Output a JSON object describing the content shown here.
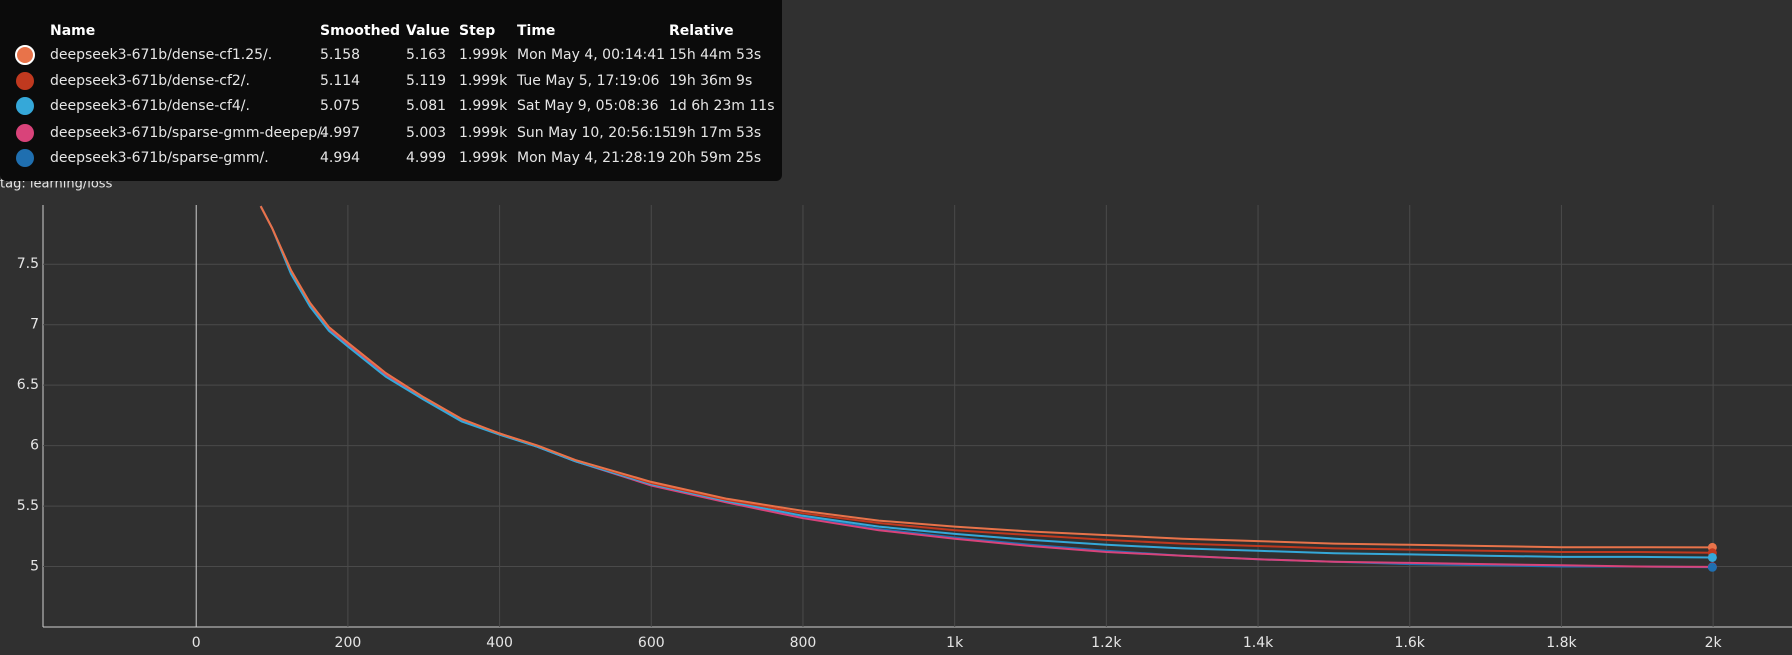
{
  "chart_data": {
    "type": "line",
    "title": "loss",
    "subtitle": "tag: learning/loss",
    "x": [
      85,
      100,
      125,
      150,
      175,
      200,
      250,
      300,
      350,
      400,
      450,
      500,
      600,
      700,
      800,
      900,
      1000,
      1100,
      1200,
      1300,
      1400,
      1500,
      1600,
      1700,
      1800,
      1900,
      1999
    ],
    "series": [
      {
        "name": "deepseek3-671b/dense-cf1.25/.",
        "color": "#e8734a",
        "values": [
          7.98,
          7.8,
          7.45,
          7.18,
          6.98,
          6.85,
          6.6,
          6.4,
          6.22,
          6.1,
          6.0,
          5.88,
          5.7,
          5.56,
          5.46,
          5.38,
          5.33,
          5.29,
          5.26,
          5.23,
          5.21,
          5.19,
          5.18,
          5.17,
          5.16,
          5.16,
          5.158
        ]
      },
      {
        "name": "deepseek3-671b/dense-cf2/.",
        "color": "#c0391f",
        "values": [
          7.98,
          7.8,
          7.45,
          7.18,
          6.98,
          6.85,
          6.6,
          6.4,
          6.22,
          6.1,
          6.0,
          5.88,
          5.69,
          5.55,
          5.44,
          5.36,
          5.3,
          5.26,
          5.22,
          5.19,
          5.17,
          5.15,
          5.14,
          5.13,
          5.12,
          5.12,
          5.114
        ]
      },
      {
        "name": "deepseek3-671b/dense-cf4/.",
        "color": "#35a8d9",
        "values": [
          7.98,
          7.8,
          7.42,
          7.15,
          6.95,
          6.82,
          6.57,
          6.38,
          6.2,
          6.09,
          5.99,
          5.87,
          5.68,
          5.54,
          5.42,
          5.33,
          5.27,
          5.22,
          5.18,
          5.15,
          5.13,
          5.11,
          5.1,
          5.09,
          5.08,
          5.08,
          5.075
        ]
      },
      {
        "name": "deepseek3-671b/sparse-gmm-deepep/.",
        "color": "#d9437a",
        "values": [
          7.98,
          7.8,
          7.44,
          7.17,
          6.97,
          6.84,
          6.59,
          6.39,
          6.21,
          6.1,
          5.99,
          5.87,
          5.67,
          5.53,
          5.4,
          5.3,
          5.23,
          5.17,
          5.12,
          5.09,
          5.06,
          5.04,
          5.03,
          5.02,
          5.01,
          5.0,
          4.997
        ]
      },
      {
        "name": "deepseek3-671b/sparse-gmm/.",
        "color": "#1f6fb0",
        "values": [
          7.98,
          7.8,
          7.44,
          7.16,
          6.96,
          6.83,
          6.58,
          6.39,
          6.21,
          6.1,
          5.99,
          5.87,
          5.68,
          5.54,
          5.41,
          5.31,
          5.24,
          5.18,
          5.13,
          5.09,
          5.06,
          5.04,
          5.02,
          5.01,
          5.0,
          5.0,
          4.994
        ]
      }
    ],
    "xlim": [
      -202,
      2104
    ],
    "ylim": [
      4.5,
      7.99
    ],
    "xticks": [
      0,
      200,
      400,
      600,
      800,
      {
        "value": 1000,
        "label": "1k"
      },
      {
        "value": 1200,
        "label": "1.2k"
      },
      {
        "value": 1400,
        "label": "1.4k"
      },
      {
        "value": 1600,
        "label": "1.6k"
      },
      {
        "value": 1800,
        "label": "1.8k"
      },
      {
        "value": 2000,
        "label": "2k"
      }
    ],
    "yticks": [
      5,
      5.5,
      6,
      6.5,
      7,
      7.5
    ],
    "grid": true
  },
  "tooltip": {
    "header": [
      "Name",
      "Smoothed",
      "Value",
      "Step",
      "Time",
      "Relative"
    ],
    "rows": [
      [
        "deepseek3-671b/dense-cf1.25/.",
        "5.158",
        "5.163",
        "1.999k",
        "Mon May 4, 00:14:41",
        "15h 44m 53s"
      ],
      [
        "deepseek3-671b/dense-cf2/.",
        "5.114",
        "5.119",
        "1.999k",
        "Tue May 5, 17:19:06",
        "19h 36m 9s"
      ],
      [
        "deepseek3-671b/dense-cf4/.",
        "5.075",
        "5.081",
        "1.999k",
        "Sat May 9, 05:08:36",
        "1d 6h 23m 11s"
      ],
      [
        "deepseek3-671b/sparse-gmm-deepep/.",
        "4.997",
        "5.003",
        "1.999k",
        "Sun May 10, 20:56:15",
        "19h 17m 53s"
      ],
      [
        "deepseek3-671b/sparse-gmm/.",
        "4.994",
        "4.999",
        "1.999k",
        "Mon May 4, 21:28:19",
        "20h 59m 25s"
      ]
    ]
  }
}
